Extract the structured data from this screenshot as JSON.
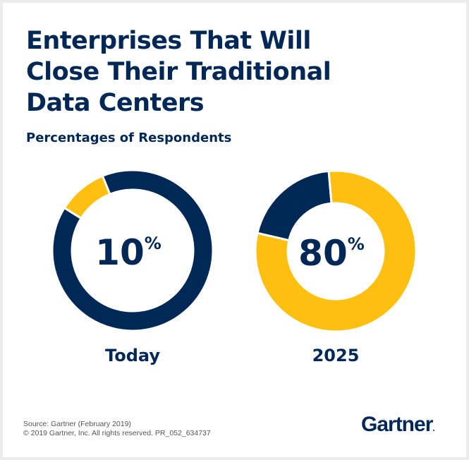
{
  "title_lines": [
    "Enterprises That Will",
    "Close Their Traditional",
    "Data Centers"
  ],
  "subtitle": "Percentages of Respondents",
  "chart_data": {
    "type": "pie",
    "variant": "donut",
    "title": "Enterprises That Will Close Their Traditional Data Centers",
    "subtitle": "Percentages of Respondents",
    "colors": {
      "share": "#FDC010",
      "remainder": "#002856"
    },
    "charts": [
      {
        "label": "Today",
        "value": 10,
        "value_label": "10",
        "unit": "%"
      },
      {
        "label": "2025",
        "value": 80,
        "value_label": "80",
        "unit": "%"
      }
    ]
  },
  "footer": {
    "source": "Source: Gartner (February 2019)",
    "copyright": "© 2019 Gartner, Inc. All rights reserved. PR_052_634737"
  },
  "logo": "Gartner"
}
